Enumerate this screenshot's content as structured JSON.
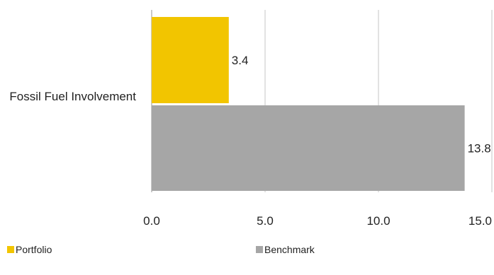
{
  "chart_data": {
    "type": "bar",
    "orientation": "horizontal",
    "categories": [
      "Fossil Fuel Involvement"
    ],
    "series": [
      {
        "name": "Portfolio",
        "values": [
          3.4
        ],
        "color": "#F2C500",
        "label": "3.4"
      },
      {
        "name": "Benchmark",
        "values": [
          13.8
        ],
        "color": "#A6A6A6",
        "label": "13.8"
      }
    ],
    "xlim": [
      0,
      15
    ],
    "xticks": [
      0,
      5,
      10,
      15
    ],
    "xtick_labels": [
      "0.0",
      "5.0",
      "10.0",
      "15.0"
    ],
    "grid": "vertical",
    "legend": "bottom"
  }
}
